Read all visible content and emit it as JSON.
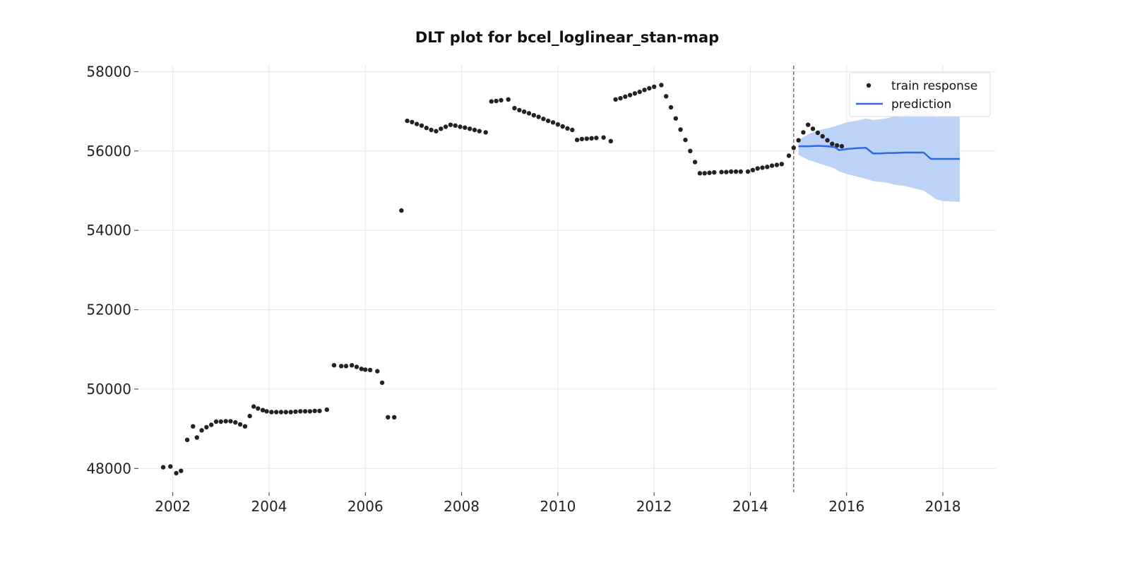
{
  "chart_data": {
    "type": "scatter",
    "title": "DLT plot for bcel_loglinear_stan-map",
    "xlabel": "",
    "ylabel": "",
    "xlim": [
      2001.3,
      2019.1
    ],
    "ylim": [
      47400,
      58150
    ],
    "x_ticks": [
      2002,
      2004,
      2006,
      2008,
      2010,
      2012,
      2014,
      2016,
      2018
    ],
    "y_ticks": [
      48000,
      50000,
      52000,
      54000,
      56000,
      58000
    ],
    "grid": true,
    "legend_position": "top-right",
    "forecast_start": 2014.9,
    "colors": {
      "train_points": "#222222",
      "prediction_line": "#2a6be0",
      "interval_fill": "#bcd2f7",
      "divider": "#666666"
    },
    "series": [
      {
        "name": "train response",
        "kind": "scatter",
        "points": [
          [
            2001.8,
            48030
          ],
          [
            2001.95,
            48050
          ],
          [
            2002.07,
            47880
          ],
          [
            2002.17,
            47940
          ],
          [
            2002.3,
            48720
          ],
          [
            2002.42,
            49060
          ],
          [
            2002.5,
            48780
          ],
          [
            2002.6,
            48960
          ],
          [
            2002.7,
            49040
          ],
          [
            2002.8,
            49100
          ],
          [
            2002.9,
            49180
          ],
          [
            2003.0,
            49180
          ],
          [
            2003.1,
            49190
          ],
          [
            2003.2,
            49190
          ],
          [
            2003.3,
            49160
          ],
          [
            2003.4,
            49110
          ],
          [
            2003.5,
            49060
          ],
          [
            2003.6,
            49320
          ],
          [
            2003.68,
            49560
          ],
          [
            2003.77,
            49510
          ],
          [
            2003.87,
            49470
          ],
          [
            2003.95,
            49440
          ],
          [
            2004.05,
            49420
          ],
          [
            2004.15,
            49420
          ],
          [
            2004.25,
            49420
          ],
          [
            2004.35,
            49420
          ],
          [
            2004.45,
            49420
          ],
          [
            2004.55,
            49430
          ],
          [
            2004.65,
            49440
          ],
          [
            2004.75,
            49440
          ],
          [
            2004.85,
            49440
          ],
          [
            2004.95,
            49450
          ],
          [
            2005.05,
            49450
          ],
          [
            2005.2,
            49480
          ],
          [
            2005.35,
            50600
          ],
          [
            2005.5,
            50580
          ],
          [
            2005.6,
            50580
          ],
          [
            2005.72,
            50600
          ],
          [
            2005.82,
            50560
          ],
          [
            2005.92,
            50510
          ],
          [
            2006.0,
            50490
          ],
          [
            2006.1,
            50480
          ],
          [
            2006.25,
            50450
          ],
          [
            2006.35,
            50160
          ],
          [
            2006.47,
            49290
          ],
          [
            2006.6,
            49290
          ],
          [
            2006.75,
            54500
          ],
          [
            2006.87,
            56760
          ],
          [
            2006.97,
            56730
          ],
          [
            2007.07,
            56680
          ],
          [
            2007.17,
            56640
          ],
          [
            2007.27,
            56580
          ],
          [
            2007.37,
            56530
          ],
          [
            2007.47,
            56500
          ],
          [
            2007.57,
            56560
          ],
          [
            2007.67,
            56610
          ],
          [
            2007.77,
            56660
          ],
          [
            2007.87,
            56640
          ],
          [
            2007.97,
            56610
          ],
          [
            2008.07,
            56590
          ],
          [
            2008.17,
            56560
          ],
          [
            2008.27,
            56530
          ],
          [
            2008.37,
            56500
          ],
          [
            2008.5,
            56470
          ],
          [
            2008.62,
            57250
          ],
          [
            2008.72,
            57260
          ],
          [
            2008.82,
            57280
          ],
          [
            2008.97,
            57300
          ],
          [
            2009.1,
            57080
          ],
          [
            2009.2,
            57030
          ],
          [
            2009.3,
            56990
          ],
          [
            2009.4,
            56950
          ],
          [
            2009.5,
            56900
          ],
          [
            2009.6,
            56860
          ],
          [
            2009.7,
            56810
          ],
          [
            2009.8,
            56760
          ],
          [
            2009.9,
            56720
          ],
          [
            2010.0,
            56670
          ],
          [
            2010.1,
            56620
          ],
          [
            2010.2,
            56570
          ],
          [
            2010.3,
            56530
          ],
          [
            2010.4,
            56280
          ],
          [
            2010.5,
            56300
          ],
          [
            2010.6,
            56310
          ],
          [
            2010.7,
            56320
          ],
          [
            2010.8,
            56330
          ],
          [
            2010.95,
            56340
          ],
          [
            2011.1,
            56250
          ],
          [
            2011.2,
            57300
          ],
          [
            2011.3,
            57330
          ],
          [
            2011.4,
            57370
          ],
          [
            2011.5,
            57410
          ],
          [
            2011.6,
            57450
          ],
          [
            2011.7,
            57490
          ],
          [
            2011.8,
            57540
          ],
          [
            2011.9,
            57580
          ],
          [
            2012.0,
            57620
          ],
          [
            2012.15,
            57660
          ],
          [
            2012.25,
            57380
          ],
          [
            2012.35,
            57100
          ],
          [
            2012.45,
            56820
          ],
          [
            2012.55,
            56540
          ],
          [
            2012.65,
            56280
          ],
          [
            2012.75,
            56000
          ],
          [
            2012.85,
            55720
          ],
          [
            2012.95,
            55440
          ],
          [
            2013.05,
            55440
          ],
          [
            2013.15,
            55450
          ],
          [
            2013.25,
            55460
          ],
          [
            2013.4,
            55470
          ],
          [
            2013.5,
            55470
          ],
          [
            2013.6,
            55480
          ],
          [
            2013.7,
            55480
          ],
          [
            2013.8,
            55480
          ],
          [
            2013.95,
            55480
          ],
          [
            2014.05,
            55520
          ],
          [
            2014.15,
            55560
          ],
          [
            2014.25,
            55580
          ],
          [
            2014.35,
            55600
          ],
          [
            2014.45,
            55630
          ],
          [
            2014.55,
            55650
          ],
          [
            2014.65,
            55670
          ],
          [
            2014.8,
            55880
          ],
          [
            2014.9,
            56080
          ],
          [
            2015.0,
            56270
          ],
          [
            2015.1,
            56470
          ],
          [
            2015.2,
            56660
          ],
          [
            2015.3,
            56560
          ],
          [
            2015.4,
            56460
          ],
          [
            2015.5,
            56370
          ],
          [
            2015.6,
            56270
          ],
          [
            2015.7,
            56180
          ],
          [
            2015.8,
            56140
          ],
          [
            2015.9,
            56120
          ]
        ]
      },
      {
        "name": "prediction",
        "kind": "line",
        "x": [
          2015.0,
          2015.2,
          2015.4,
          2015.6,
          2015.75,
          2015.85,
          2016.0,
          2016.2,
          2016.4,
          2016.55,
          2016.7,
          2016.85,
          2017.0,
          2017.2,
          2017.4,
          2017.6,
          2017.75,
          2017.85,
          2018.0,
          2018.2,
          2018.35
        ],
        "y": [
          56120,
          56120,
          56130,
          56120,
          56100,
          56020,
          56050,
          56070,
          56080,
          55940,
          55940,
          55950,
          55950,
          55960,
          55960,
          55960,
          55800,
          55800,
          55800,
          55800,
          55800
        ],
        "upper": [
          56280,
          56420,
          56520,
          56570,
          56620,
          56660,
          56720,
          56760,
          56820,
          56780,
          56800,
          56830,
          56880,
          56920,
          56960,
          57000,
          56970,
          56880,
          56860,
          56860,
          56880
        ],
        "lower": [
          55900,
          55780,
          55700,
          55620,
          55560,
          55480,
          55420,
          55360,
          55300,
          55240,
          55220,
          55200,
          55150,
          55120,
          55060,
          55000,
          54880,
          54790,
          54740,
          54730,
          54720
        ]
      }
    ]
  }
}
